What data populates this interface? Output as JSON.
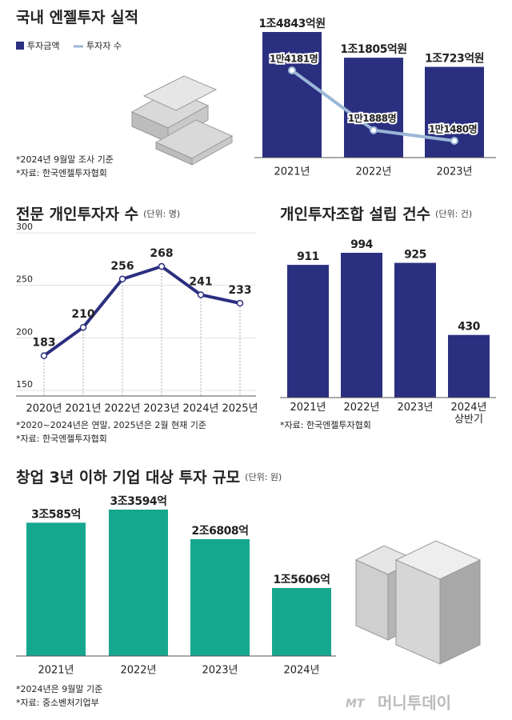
{
  "chart_data": [
    {
      "type": "combo",
      "title": "국내 엔젤투자 실적",
      "categories": [
        "2021년",
        "2022년",
        "2023년"
      ],
      "series": [
        {
          "name": "투자금액",
          "type": "bar",
          "color": "#2b2f7f",
          "values": [
            14843,
            11805,
            10723
          ],
          "value_labels": [
            "1조4843억원",
            "1조1805억원",
            "1조723억원"
          ]
        },
        {
          "name": "투자자 수",
          "type": "line",
          "color": "#9ab7d6",
          "values": [
            14181,
            11888,
            11480
          ],
          "value_labels": [
            "1만4181명",
            "1만1888명",
            "1만1480명"
          ]
        }
      ],
      "notes": [
        "*2024년 9월말 조사 기준",
        "*자료: 한국엔젤투자협회"
      ]
    },
    {
      "type": "line",
      "title": "전문 개인투자자 수",
      "subtitle": "(단위: 명)",
      "color": "#2b2f7f",
      "categories": [
        "2020년",
        "2021년",
        "2022년",
        "2023년",
        "2024년",
        "2025년"
      ],
      "values": [
        183,
        210,
        256,
        268,
        241,
        233
      ],
      "ylim": [
        150,
        300
      ],
      "yticks": [
        150,
        200,
        250,
        300
      ],
      "grid": true,
      "notes": [
        "*2020~2024년은 연말, 2025년은 2월 현재 기준",
        "*자료: 한국엔젤투자협회"
      ]
    },
    {
      "type": "bar",
      "title": "개인투자조합 설립 건수",
      "subtitle": "(단위: 건)",
      "color": "#2b2f7f",
      "categories": [
        "2021년",
        "2022년",
        "2023년",
        "2024년 상반기"
      ],
      "values": [
        911,
        994,
        925,
        430
      ],
      "notes": [
        "*자료: 한국엔젤투자협회"
      ]
    },
    {
      "type": "bar",
      "title": "창업 3년 이하 기업 대상 투자 규모",
      "subtitle": "(단위: 원)",
      "color": "#16a88e",
      "categories": [
        "2021년",
        "2022년",
        "2023년",
        "2024년"
      ],
      "values": [
        30585,
        33594,
        26808,
        15606
      ],
      "value_labels": [
        "3조585억",
        "3조3594억",
        "2조6808억",
        "1조5606억"
      ],
      "notes": [
        "*2024년은 9월말 기준",
        "*자료: 중소벤처기업부"
      ]
    }
  ],
  "footer": {
    "mark": "MT",
    "logo": "머니투데이"
  }
}
